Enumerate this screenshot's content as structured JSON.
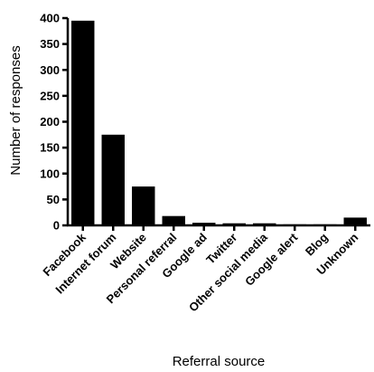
{
  "chart_data": {
    "type": "bar",
    "title": "",
    "xlabel": "Referral source",
    "ylabel": "Number of responses",
    "categories": [
      "Facebook",
      "Internet forum",
      "Website",
      "Personal referral",
      "Google ad",
      "Twitter",
      "Other social media",
      "Google alert",
      "Blog",
      "Unknown"
    ],
    "values": [
      395,
      175,
      75,
      18,
      5,
      4,
      4,
      2,
      2,
      15
    ],
    "ylim": [
      0,
      400
    ],
    "yticks": [
      "0",
      "50",
      "100",
      "150",
      "200",
      "250",
      "300",
      "350",
      "400"
    ],
    "grid": false,
    "bar_color": "#000000"
  }
}
